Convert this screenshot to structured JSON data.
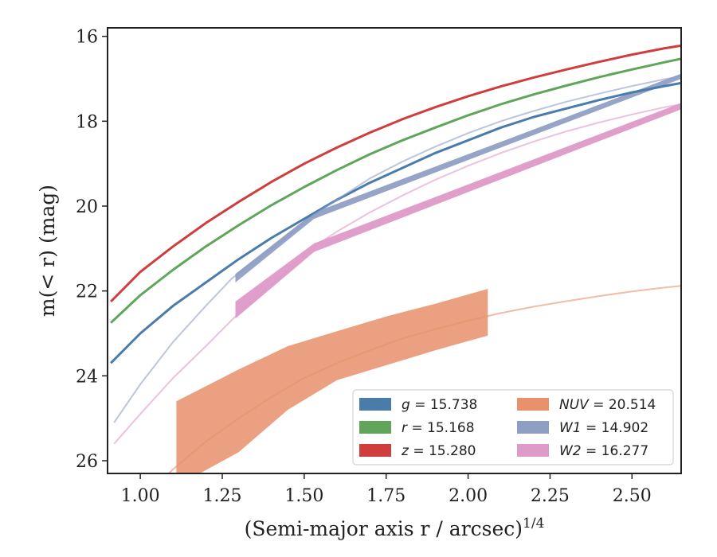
{
  "chart_data": {
    "type": "line",
    "title": "",
    "xlabel": "(Semi-major axis r / arcsec)",
    "xlabel_sup": "1/4",
    "ylabel": "m(< r) (mag)",
    "xlim": [
      0.9,
      2.65
    ],
    "ylim": [
      26.3,
      15.8
    ],
    "y_inverted": true,
    "xticks": [
      1.0,
      1.25,
      1.5,
      1.75,
      2.0,
      2.25,
      2.5
    ],
    "xtick_labels": [
      "1.00",
      "1.25",
      "1.50",
      "1.75",
      "2.00",
      "2.25",
      "2.50"
    ],
    "yticks": [
      16,
      18,
      20,
      22,
      24,
      26
    ],
    "ytick_labels": [
      "16",
      "18",
      "20",
      "22",
      "24",
      "26"
    ],
    "grid": false,
    "legend_position": "lower-right",
    "series": [
      {
        "name": "g = 15.738",
        "color": "#4a7cab",
        "x": [
          0.91,
          1.0,
          1.1,
          1.2,
          1.3,
          1.4,
          1.5,
          1.6,
          1.7,
          1.8,
          1.9,
          2.0,
          2.1,
          2.2,
          2.3,
          2.4,
          2.5,
          2.6,
          2.65
        ],
        "y": [
          23.7,
          23.0,
          22.35,
          21.8,
          21.25,
          20.75,
          20.3,
          19.85,
          19.45,
          19.1,
          18.75,
          18.45,
          18.15,
          17.9,
          17.7,
          17.5,
          17.32,
          17.17,
          17.1
        ]
      },
      {
        "name": "r = 15.168",
        "color": "#5fa55a",
        "x": [
          0.91,
          1.0,
          1.1,
          1.2,
          1.3,
          1.4,
          1.5,
          1.6,
          1.7,
          1.8,
          1.9,
          2.0,
          2.1,
          2.2,
          2.3,
          2.4,
          2.5,
          2.6,
          2.65
        ],
        "y": [
          22.75,
          22.1,
          21.5,
          20.95,
          20.45,
          19.98,
          19.55,
          19.15,
          18.78,
          18.45,
          18.15,
          17.86,
          17.6,
          17.37,
          17.16,
          16.96,
          16.78,
          16.61,
          16.53
        ]
      },
      {
        "name": "z = 15.280",
        "color": "#cf3d3d",
        "x": [
          0.91,
          1.0,
          1.1,
          1.2,
          1.3,
          1.4,
          1.5,
          1.6,
          1.7,
          1.8,
          1.9,
          2.0,
          2.1,
          2.2,
          2.3,
          2.4,
          2.5,
          2.6,
          2.65
        ],
        "y": [
          22.25,
          21.55,
          20.95,
          20.4,
          19.9,
          19.43,
          19.0,
          18.62,
          18.27,
          17.95,
          17.67,
          17.41,
          17.18,
          16.97,
          16.78,
          16.6,
          16.43,
          16.28,
          16.22
        ]
      },
      {
        "name": "NUV = 20.514",
        "color": "#e8916b",
        "x": [
          0.91,
          1.0,
          1.1,
          1.2,
          1.3,
          1.4,
          1.5,
          1.6,
          1.7,
          1.8,
          1.9,
          2.0,
          2.1,
          2.2,
          2.3,
          2.4,
          2.5,
          2.6,
          2.65
        ],
        "y": [
          27.8,
          26.95,
          26.2,
          25.55,
          25.0,
          24.5,
          24.05,
          23.7,
          23.4,
          23.12,
          22.9,
          22.7,
          22.52,
          22.37,
          22.24,
          22.12,
          22.01,
          21.92,
          21.88
        ],
        "band_x": [
          1.11,
          1.3,
          1.45,
          1.6,
          1.75,
          1.9,
          2.06
        ],
        "band_upper": [
          24.6,
          23.85,
          23.3,
          22.95,
          22.6,
          22.3,
          21.95
        ],
        "band_lower": [
          26.6,
          25.8,
          24.8,
          24.1,
          23.75,
          23.4,
          23.05
        ]
      },
      {
        "name": "W1 = 14.902",
        "color": "#8f9fc4",
        "x": [
          0.92,
          1.0,
          1.1,
          1.2,
          1.28,
          1.4,
          1.53,
          1.6,
          1.7,
          1.8,
          1.9,
          2.0,
          2.1,
          2.2,
          2.3,
          2.4,
          2.5,
          2.6,
          2.65
        ],
        "y": [
          25.1,
          24.2,
          23.2,
          22.35,
          21.7,
          21.0,
          20.2,
          19.85,
          19.35,
          18.95,
          18.6,
          18.28,
          18.0,
          17.76,
          17.54,
          17.35,
          17.17,
          17.01,
          16.94
        ],
        "band_x": [
          1.29,
          1.53,
          2.65
        ],
        "band_upper": [
          21.6,
          20.15,
          16.88
        ],
        "band_lower": [
          21.8,
          20.3,
          17.0
        ]
      },
      {
        "name": "W2 = 16.277",
        "color": "#de9ac8",
        "x": [
          0.92,
          1.0,
          1.1,
          1.2,
          1.29,
          1.4,
          1.53,
          1.6,
          1.7,
          1.8,
          1.9,
          2.0,
          2.1,
          2.2,
          2.3,
          2.4,
          2.5,
          2.6,
          2.65
        ],
        "y": [
          25.6,
          24.9,
          24.05,
          23.3,
          22.6,
          21.85,
          20.95,
          20.6,
          20.15,
          19.75,
          19.38,
          19.05,
          18.75,
          18.48,
          18.24,
          18.03,
          17.84,
          17.67,
          17.6
        ],
        "band_x": [
          1.29,
          1.53,
          2.65
        ],
        "band_upper": [
          22.25,
          20.88,
          17.57
        ],
        "band_lower": [
          22.65,
          21.08,
          17.72
        ]
      }
    ],
    "legend": [
      {
        "label_var": "g",
        "label_value": " = 15.738",
        "color": "#4a7cab"
      },
      {
        "label_var": "r",
        "label_value": " = 15.168",
        "color": "#5fa55a"
      },
      {
        "label_var": "z",
        "label_value": " = 15.280",
        "color": "#cf3d3d"
      },
      {
        "label_var": "NUV",
        "label_value": " = 20.514",
        "color": "#e8916b"
      },
      {
        "label_var": "W1",
        "label_value": " = 14.902",
        "color": "#8f9fc4"
      },
      {
        "label_var": "W2",
        "label_value": " = 16.277",
        "color": "#de9ac8"
      }
    ]
  }
}
